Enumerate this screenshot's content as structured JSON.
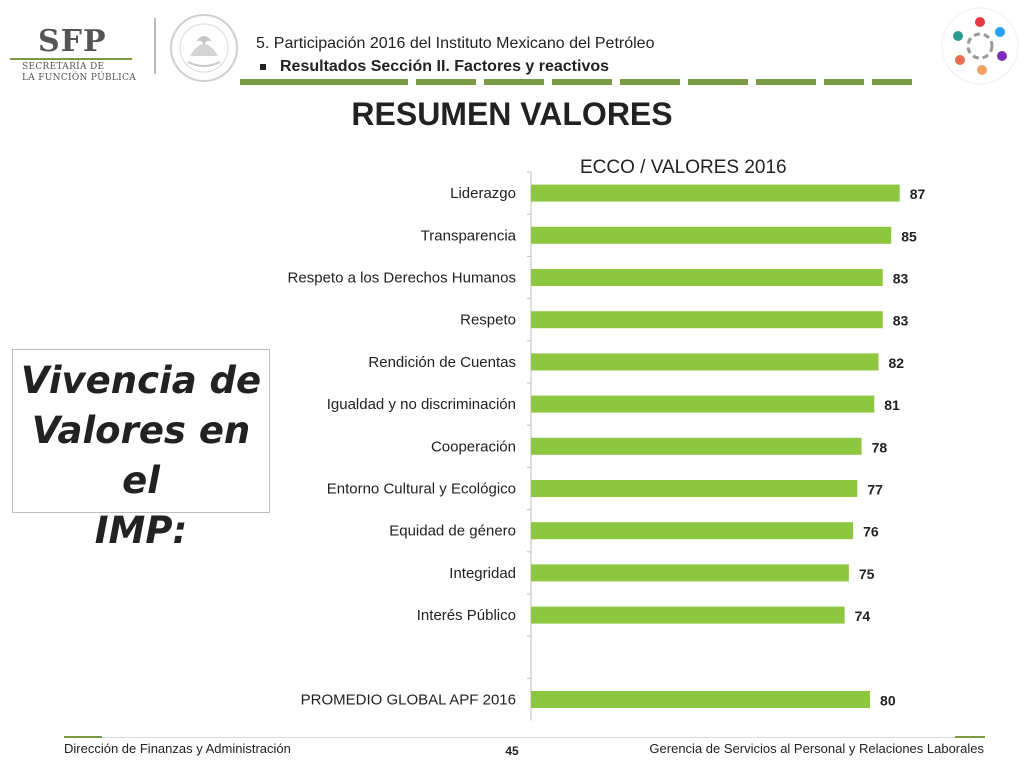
{
  "header": {
    "org_name": "SFP",
    "org_sub_line1": "SECRETARÍA DE",
    "org_sub_line2": "LA FUNCIÓN PÚBLICA",
    "section_line": "5. Participación 2016 del Instituto Mexicano del Petróleo",
    "subsection_line": "Resultados Sección II. Factores y reactivos",
    "accent_color": "#7a9a46"
  },
  "title": "RESUMEN VALORES",
  "callout": {
    "line1": "Vivencia de",
    "line2": "Valores en el",
    "line3": "IMP:"
  },
  "chart_data": {
    "type": "bar",
    "orientation": "horizontal",
    "title": "ECCO /   VALORES 2016",
    "bar_color": "#8dc63f",
    "xlim": [
      0,
      100
    ],
    "categories": [
      "Liderazgo",
      "Transparencia",
      "Respeto a los Derechos Humanos",
      "Respeto",
      "Rendición de Cuentas",
      "Igualdad y no discriminación",
      "Cooperación",
      "Entorno Cultural y Ecológico",
      "Equidad de género",
      "Integridad",
      "Interés Público",
      "",
      "PROMEDIO GLOBAL APF   2016"
    ],
    "values": [
      87,
      85,
      83,
      83,
      82,
      81,
      78,
      77,
      76,
      75,
      74,
      null,
      80
    ],
    "data_labels": [
      "87",
      "85",
      "83",
      "83",
      "82",
      "81",
      "78",
      "77",
      "76",
      "75",
      "74",
      "",
      "80"
    ]
  },
  "footer": {
    "left": "Dirección de Finanzas y Administración",
    "page": "45",
    "right": "Gerencia de Servicios al Personal y Relaciones Laborales"
  },
  "icons": {
    "seal": "mexican-coat-of-arms-seal-icon",
    "norma_logo": "norma-igualdad-logo-icon"
  }
}
